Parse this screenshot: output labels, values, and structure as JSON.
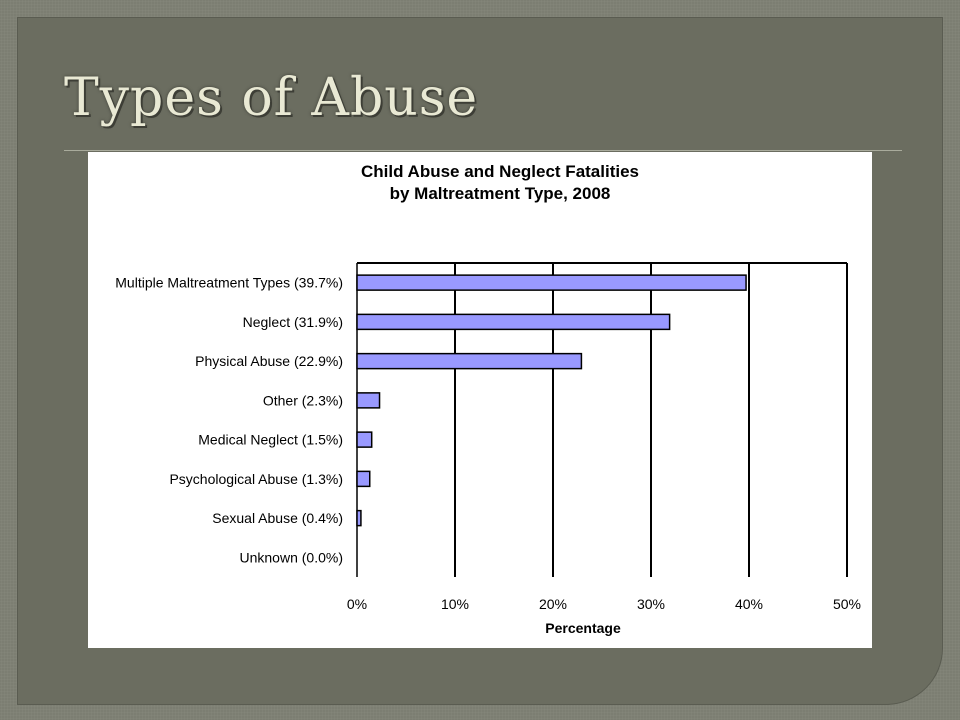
{
  "slide": {
    "title": "Types of Abuse"
  },
  "colors": {
    "bar_fill": "#9999ff",
    "bar_stroke": "#000000",
    "slide_bg": "#6b6d60",
    "title_text": "#e9e9d4"
  },
  "chart_data": {
    "type": "bar",
    "orientation": "horizontal",
    "title_lines": [
      "Child Abuse and Neglect Fatalities",
      "by Maltreatment Type, 2008"
    ],
    "categories": [
      "Multiple Maltreatment Types (39.7%)",
      "Neglect (31.9%)",
      "Physical Abuse (22.9%)",
      "Other (2.3%)",
      "Medical Neglect (1.5%)",
      "Psychological Abuse (1.3%)",
      "Sexual Abuse (0.4%)",
      "Unknown (0.0%)"
    ],
    "values": [
      39.7,
      31.9,
      22.9,
      2.3,
      1.5,
      1.3,
      0.4,
      0.0
    ],
    "xlabel": "Percentage",
    "xlim": [
      0,
      50
    ],
    "xticks": [
      0,
      10,
      20,
      30,
      40,
      50
    ],
    "xtick_labels": [
      "0%",
      "10%",
      "20%",
      "30%",
      "40%",
      "50%"
    ],
    "grid": "vertical",
    "legend": "none"
  }
}
